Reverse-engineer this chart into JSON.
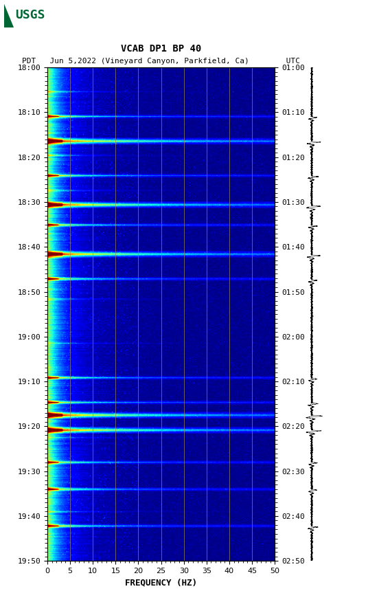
{
  "title_line1": "VCAB DP1 BP 40",
  "title_line2": "PDT   Jun 5,2022 (Vineyard Canyon, Parkfield, Ca)        UTC",
  "xlabel": "FREQUENCY (HZ)",
  "freq_min": 0,
  "freq_max": 50,
  "freq_ticks": [
    0,
    5,
    10,
    15,
    20,
    25,
    30,
    35,
    40,
    45,
    50
  ],
  "time_labels_pdt": [
    "18:00",
    "18:10",
    "18:20",
    "18:30",
    "18:40",
    "18:50",
    "19:00",
    "19:10",
    "19:20",
    "19:30",
    "19:40",
    "19:50"
  ],
  "time_labels_utc": [
    "01:00",
    "01:10",
    "01:20",
    "01:30",
    "01:40",
    "01:50",
    "02:00",
    "02:10",
    "02:20",
    "02:30",
    "02:40",
    "02:50"
  ],
  "vertical_lines_freq": [
    5,
    10,
    15,
    20,
    25,
    30,
    35,
    40,
    45
  ],
  "background_color": "#ffffff",
  "usgs_green": "#006633",
  "figsize": [
    5.52,
    8.92
  ],
  "dpi": 100,
  "n_time": 660,
  "n_freq": 300,
  "eq_bands_strong": [
    0.15,
    0.28,
    0.38,
    0.705,
    0.735
  ],
  "eq_bands_medium": [
    0.1,
    0.22,
    0.32,
    0.43,
    0.63,
    0.68,
    0.8,
    0.855,
    0.93
  ],
  "eq_bands_weak": [
    0.05,
    0.18,
    0.25,
    0.47,
    0.56,
    0.75,
    0.9
  ],
  "waveform_spikes": [
    0.1,
    0.15,
    0.22,
    0.28,
    0.32,
    0.38,
    0.43,
    0.63,
    0.68,
    0.705,
    0.735,
    0.8,
    0.855,
    0.93
  ]
}
